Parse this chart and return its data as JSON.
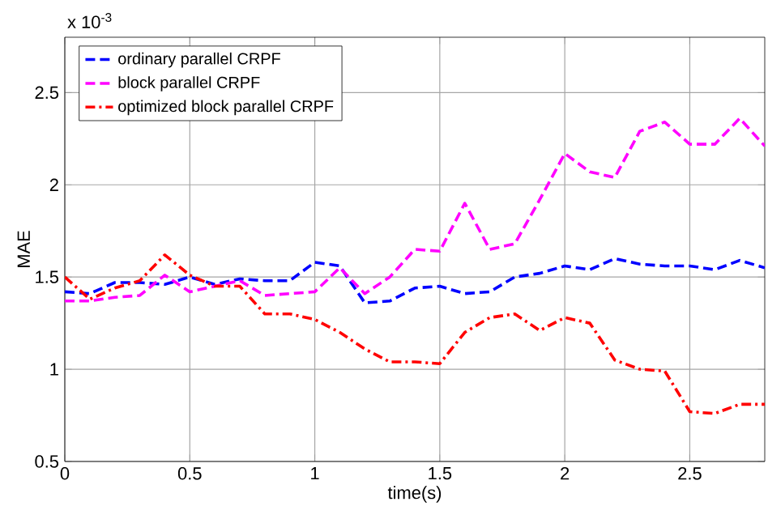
{
  "chart_data": {
    "type": "line",
    "xlabel": "time(s)",
    "ylabel": "MAE",
    "annotations": [
      "x 10$^{-3}$"
    ],
    "x": [
      0,
      0.1,
      0.2,
      0.3,
      0.4,
      0.5,
      0.6,
      0.7,
      0.8,
      0.9,
      1.0,
      1.1,
      1.2,
      1.3,
      1.4,
      1.5,
      1.6,
      1.7,
      1.8,
      1.9,
      2.0,
      2.1,
      2.2,
      2.3,
      2.4,
      2.5,
      2.6,
      2.7,
      2.8
    ],
    "series": [
      {
        "name": "ordinary parallel CRPF",
        "color": "#0000ff",
        "line_style": "dashed",
        "values": [
          1.42,
          1.41,
          1.47,
          1.47,
          1.46,
          1.5,
          1.46,
          1.49,
          1.48,
          1.48,
          1.58,
          1.56,
          1.36,
          1.37,
          1.44,
          1.45,
          1.41,
          1.42,
          1.5,
          1.52,
          1.56,
          1.54,
          1.6,
          1.57,
          1.56,
          1.56,
          1.54,
          1.59,
          1.55
        ]
      },
      {
        "name": "block parallel CRPF",
        "color": "#ff00ff",
        "line_style": "dashed",
        "values": [
          1.37,
          1.37,
          1.39,
          1.4,
          1.51,
          1.42,
          1.45,
          1.48,
          1.4,
          1.41,
          1.42,
          1.55,
          1.41,
          1.5,
          1.65,
          1.64,
          1.9,
          1.65,
          1.68,
          1.92,
          2.17,
          2.07,
          2.04,
          2.29,
          2.34,
          2.22,
          2.22,
          2.36,
          2.21
        ]
      },
      {
        "name": "optimized block parallel CRPF",
        "color": "#ff0000",
        "line_style": "dashdot",
        "values": [
          1.5,
          1.38,
          1.44,
          1.48,
          1.62,
          1.51,
          1.45,
          1.45,
          1.3,
          1.3,
          1.27,
          1.2,
          1.11,
          1.04,
          1.04,
          1.03,
          1.2,
          1.28,
          1.3,
          1.21,
          1.28,
          1.25,
          1.05,
          1.0,
          0.99,
          0.77,
          0.76,
          0.81,
          0.81
        ]
      }
    ],
    "xlim": [
      0,
      2.8
    ],
    "ylim": [
      0.5,
      2.8
    ],
    "xticks": [
      0,
      0.5,
      1,
      1.5,
      2,
      2.5
    ],
    "yticks": [
      0.5,
      1,
      1.5,
      2,
      2.5
    ],
    "grid": true,
    "legend": "top left"
  }
}
